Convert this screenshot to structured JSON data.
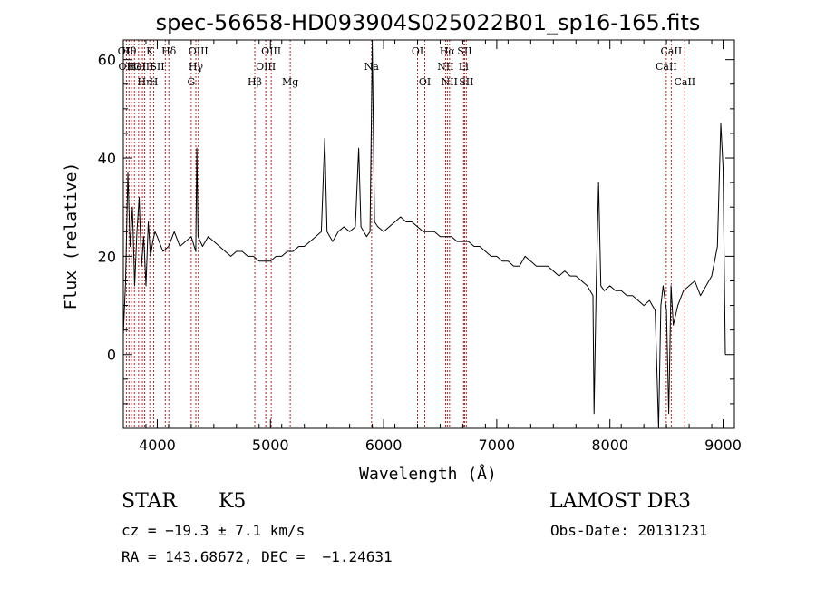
{
  "chart_data": {
    "type": "line",
    "title": "spec-56658-HD093904S025022B01_sp16-165.fits",
    "xlabel": "Wavelength (Å)",
    "ylabel": "Flux (relative)",
    "xlim": [
      3700,
      9100
    ],
    "ylim": [
      -15,
      64
    ],
    "x_ticks": [
      4000,
      5000,
      6000,
      7000,
      8000,
      9000
    ],
    "y_ticks": [
      0,
      20,
      40,
      60
    ],
    "grid": false,
    "line_color": "#000000",
    "marker_color": "#b22222",
    "series": [
      {
        "x": [
          3700,
          3720,
          3740,
          3760,
          3780,
          3800,
          3820,
          3840,
          3860,
          3880,
          3900,
          3920,
          3940,
          3960,
          3980,
          4000,
          4050,
          4100,
          4150,
          4200,
          4250,
          4300,
          4340,
          4350,
          4360,
          4400,
          4450,
          4500,
          4550,
          4600,
          4650,
          4700,
          4750,
          4800,
          4850,
          4900,
          4950,
          5000,
          5050,
          5100,
          5150,
          5200,
          5250,
          5300,
          5350,
          5400,
          5450,
          5480,
          5500,
          5550,
          5600,
          5650,
          5700,
          5750,
          5780,
          5800,
          5850,
          5880,
          5900,
          5920,
          5950,
          6000,
          6050,
          6100,
          6150,
          6200,
          6250,
          6300,
          6350,
          6400,
          6450,
          6500,
          6550,
          6600,
          6650,
          6700,
          6750,
          6800,
          6850,
          6900,
          6950,
          7000,
          7050,
          7100,
          7150,
          7200,
          7250,
          7300,
          7350,
          7400,
          7450,
          7500,
          7550,
          7600,
          7650,
          7700,
          7750,
          7800,
          7850,
          7860,
          7880,
          7900,
          7920,
          7950,
          8000,
          8050,
          8100,
          8150,
          8200,
          8250,
          8300,
          8350,
          8400,
          8430,
          8450,
          8470,
          8500,
          8520,
          8540,
          8560,
          8600,
          8650,
          8700,
          8750,
          8800,
          8850,
          8900,
          8950,
          8980,
          9000,
          9020
        ],
        "y": [
          4,
          15,
          37,
          22,
          30,
          14,
          25,
          32,
          18,
          24,
          14,
          27,
          20,
          23,
          25,
          24,
          21,
          22,
          25,
          22,
          23,
          24,
          21,
          42,
          24,
          22,
          24,
          23,
          22,
          21,
          20,
          21,
          21,
          20,
          20,
          19,
          19,
          19,
          20,
          20,
          21,
          21,
          22,
          22,
          23,
          24,
          25,
          44,
          25,
          23,
          25,
          26,
          25,
          26,
          42,
          26,
          24,
          25,
          63,
          27,
          26,
          25,
          26,
          27,
          28,
          27,
          27,
          26,
          25,
          25,
          25,
          24,
          24,
          24,
          23,
          23,
          23,
          22,
          22,
          21,
          20,
          20,
          19,
          19,
          18,
          18,
          20,
          19,
          18,
          18,
          18,
          17,
          16,
          17,
          16,
          16,
          15,
          14,
          12,
          -12,
          15,
          35,
          14,
          13,
          14,
          13,
          13,
          12,
          12,
          11,
          10,
          11,
          9,
          -15,
          10,
          14,
          9,
          -12,
          14,
          6,
          10,
          13,
          14,
          15,
          12,
          14,
          16,
          22,
          47,
          38,
          0
        ]
      }
    ],
    "lines": [
      {
        "x": 3727,
        "label": "OII",
        "row": 2
      },
      {
        "x": 3750,
        "label": "Hθ",
        "row": 1
      },
      {
        "x": 3771,
        "label": "",
        "row": 0
      },
      {
        "x": 3798,
        "label": "",
        "row": 0
      },
      {
        "x": 3835,
        "label": "",
        "row": 0
      },
      {
        "x": 3869,
        "label": "",
        "row": 0
      },
      {
        "x": 3889,
        "label": "Hη",
        "row": 3
      },
      {
        "x": 3934,
        "label": "K",
        "row": 1
      },
      {
        "x": 3969,
        "label": "H",
        "row": 3
      },
      {
        "x": 4071,
        "label": "",
        "row": 0
      },
      {
        "x": 4102,
        "label": "Hδ",
        "row": 1
      },
      {
        "x": 4300,
        "label": "G",
        "row": 3
      },
      {
        "x": 4341,
        "label": "Hγ",
        "row": 2
      },
      {
        "x": 4363,
        "label": "OIII",
        "row": 1
      },
      {
        "x": 4862,
        "label": "Hβ",
        "row": 3
      },
      {
        "x": 4959,
        "label": "OIII",
        "row": 2
      },
      {
        "x": 5007,
        "label": "OIII",
        "row": 1
      },
      {
        "x": 5175,
        "label": "Mg",
        "row": 3
      },
      {
        "x": 5894,
        "label": "Na",
        "row": 2
      },
      {
        "x": 6300,
        "label": "OI",
        "row": 1
      },
      {
        "x": 6364,
        "label": "OI",
        "row": 3
      },
      {
        "x": 6548,
        "label": "NII",
        "row": 2
      },
      {
        "x": 6563,
        "label": "Hα",
        "row": 1
      },
      {
        "x": 6583,
        "label": "NII",
        "row": 3
      },
      {
        "x": 6707,
        "label": "Li",
        "row": 2
      },
      {
        "x": 6716,
        "label": "SII",
        "row": 1
      },
      {
        "x": 6731,
        "label": "SII",
        "row": 3
      },
      {
        "x": 8498,
        "label": "CaII",
        "row": 2
      },
      {
        "x": 8542,
        "label": "CaII",
        "row": 1
      },
      {
        "x": 8662,
        "label": "CaII",
        "row": 3
      }
    ],
    "extra_labels": [
      {
        "x": 3720,
        "label": "OII",
        "row": 1
      },
      {
        "x": 3820,
        "label": "HeI",
        "row": 2
      },
      {
        "x": 3880,
        "label": "OIII",
        "row": 2
      },
      {
        "x": 4000,
        "label": "SII",
        "row": 2
      }
    ]
  },
  "info": {
    "class": "STAR",
    "subclass": "K5",
    "survey": "LAMOST DR3",
    "redshift": "cz = −19.3 ± 7.1 km/s",
    "obs_date": "Obs-Date: 20131231",
    "coords": "RA = 143.68672, DEC =  −1.24631"
  }
}
